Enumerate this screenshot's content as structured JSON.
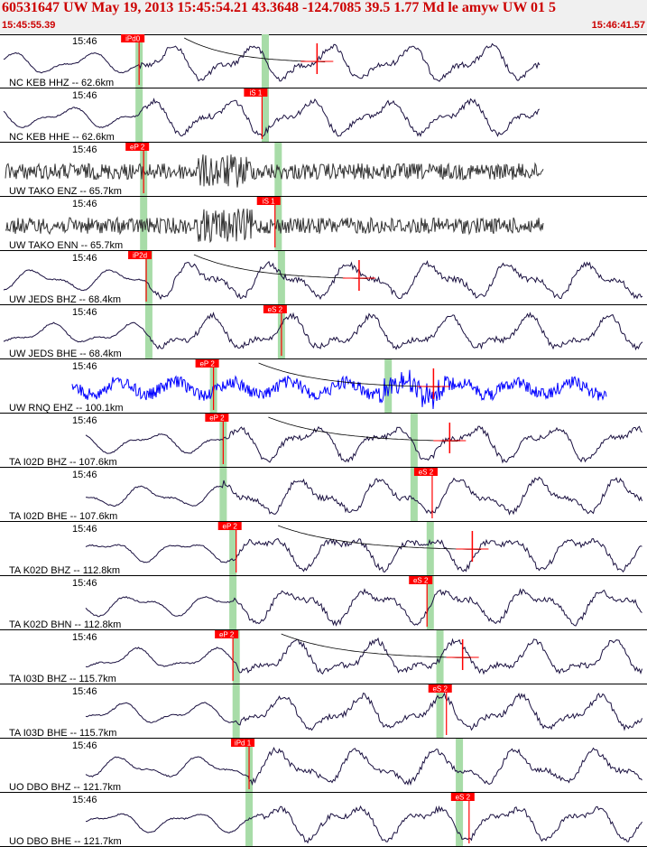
{
  "header": {
    "title": "60531647 UW May 19, 2013 15:45:54.21   43.3648 -124.7085 39.5 1.77 Md le amyw UW 01   5",
    "start_time": "15:45:55.39",
    "end_time": "15:46:41.57"
  },
  "colors": {
    "header_text": "#cc0000",
    "trace_default": "#000000",
    "trace_blue": "#0000ff",
    "pick_box": "#ff0000",
    "pick_text": "#ffffff",
    "pick_window": "#a8dca8",
    "coda_line": "#000000"
  },
  "chart_data": {
    "type": "line",
    "description_free": true,
    "time_range": [
      "15:45:55.39",
      "15:46:41.57"
    ],
    "panels": [
      {
        "label": "NC KEB HHZ -- 62.6km",
        "time_label": "15:46",
        "color": "dark",
        "style": "smooth",
        "pick": {
          "label": "iPd0",
          "t": 0.215
        },
        "window_t": [
          0.215,
          0.41
        ],
        "coda": true,
        "coda_end": 0.49
      },
      {
        "label": "NC KEB HHE -- 62.6km",
        "time_label": "15:46",
        "color": "dark",
        "style": "smooth",
        "pick": {
          "label": "iS 1",
          "t": 0.405
        },
        "window_t": [
          0.215,
          0.41
        ],
        "coda": false
      },
      {
        "label": "UW TAKO ENZ -- 65.7km",
        "time_label": "15:46",
        "color": "gray",
        "style": "noise",
        "pick": {
          "label": "eP 2",
          "t": 0.222
        },
        "window_t": [
          0.222,
          0.43
        ],
        "coda": false
      },
      {
        "label": "UW TAKO ENN -- 65.7km",
        "time_label": "15:46",
        "color": "gray",
        "style": "noise",
        "pick": {
          "label": "iS 1",
          "t": 0.425
        },
        "window_t": [
          0.222,
          0.43
        ],
        "coda": false
      },
      {
        "label": "UW JEDS BHZ -- 68.4km",
        "time_label": "15:46",
        "color": "dark",
        "style": "smooth",
        "pick": {
          "label": "iP2d",
          "t": 0.226
        },
        "window_t": [
          0.23,
          0.435
        ],
        "coda": true,
        "coda_end": 0.555
      },
      {
        "label": "UW JEDS BHE -- 68.4km",
        "time_label": "15:46",
        "color": "dark",
        "style": "smooth",
        "pick": {
          "label": "eS 2",
          "t": 0.435
        },
        "window_t": [
          0.23,
          0.435
        ],
        "coda": false
      },
      {
        "label": "UW RNQ EHZ -- 100.1km",
        "time_label": "15:46",
        "color": "blue",
        "style": "noisy-wave",
        "pick": {
          "label": "eP 2",
          "t": 0.33
        },
        "window_t": [
          0.33,
          0.6
        ],
        "coda": true,
        "coda_end": 0.67
      },
      {
        "label": "TA I02D BHZ -- 107.6km",
        "time_label": "15:46",
        "color": "dark",
        "style": "smooth",
        "pick": {
          "label": "eP 2",
          "t": 0.345
        },
        "window_t": [
          0.345,
          0.64
        ],
        "coda": true,
        "coda_end": 0.695
      },
      {
        "label": "TA I02D BHE -- 107.6km",
        "time_label": "15:46",
        "color": "dark",
        "style": "smooth",
        "pick": {
          "label": "eS 2",
          "t": 0.668
        },
        "window_t": [
          0.345,
          0.64
        ],
        "coda": false
      },
      {
        "label": "TA K02D BHZ -- 112.8km",
        "time_label": "15:46",
        "color": "dark",
        "style": "smooth",
        "pick": {
          "label": "eP 2",
          "t": 0.365
        },
        "window_t": [
          0.36,
          0.665
        ],
        "coda": true,
        "coda_end": 0.73
      },
      {
        "label": "TA K02D BHN -- 112.8km",
        "time_label": "15:46",
        "color": "dark",
        "style": "smooth",
        "pick": {
          "label": "eS 2",
          "t": 0.66
        },
        "window_t": [
          0.36,
          0.665
        ],
        "coda": false
      },
      {
        "label": "TA I03D BHZ -- 115.7km",
        "time_label": "15:46",
        "color": "dark",
        "style": "smooth",
        "pick": {
          "label": "eP 2",
          "t": 0.36
        },
        "window_t": [
          0.365,
          0.68
        ],
        "coda": true,
        "coda_end": 0.715
      },
      {
        "label": "TA I03D BHE -- 115.7km",
        "time_label": "15:46",
        "color": "dark",
        "style": "smooth",
        "pick": {
          "label": "eS 2",
          "t": 0.69
        },
        "window_t": [
          0.365,
          0.68
        ],
        "coda": false
      },
      {
        "label": "UO DBO BHZ -- 121.7km",
        "time_label": "15:46",
        "color": "dark",
        "style": "smooth",
        "pick": {
          "label": "iPd 1",
          "t": 0.385
        },
        "window_t": [
          0.385,
          0.71
        ],
        "coda": false
      },
      {
        "label": "UO DBO BHE -- 121.7km",
        "time_label": "15:46",
        "color": "dark",
        "style": "smooth",
        "pick": {
          "label": "eS 2",
          "t": 0.725
        },
        "window_t": [
          0.385,
          0.71
        ],
        "coda": false
      }
    ]
  }
}
